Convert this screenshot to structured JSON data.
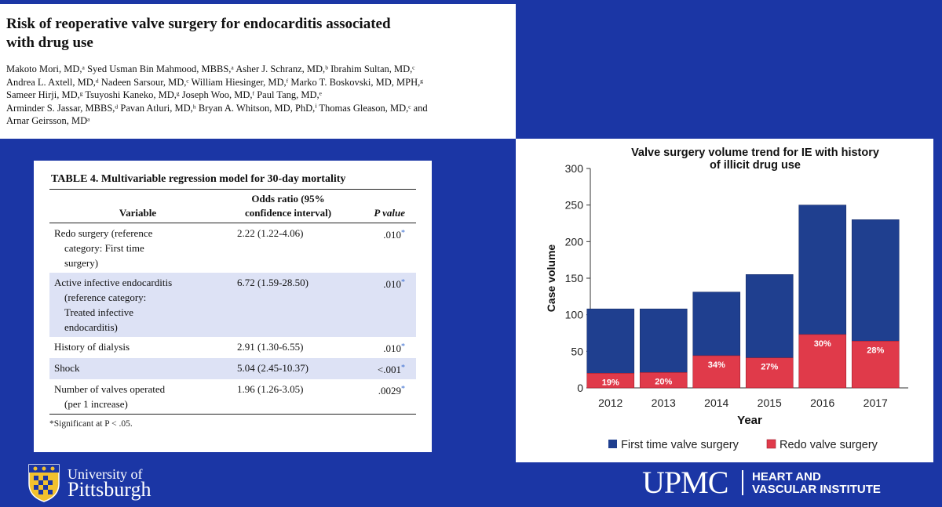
{
  "paper": {
    "title": "Risk of reoperative valve surgery for endocarditis associated with drug use",
    "author_lines": [
      "Makoto Mori, MD,ᵃ Syed Usman Bin Mahmood, MBBS,ᵃ Asher J. Schranz, MD,ᵇ Ibrahim Sultan, MD,ᶜ",
      "Andrea L. Axtell, MD,ᵈ Nadeen Sarsour, MD,ᶜ William Hiesinger, MD,ᶠ Marko T. Boskovski, MD, MPH,ᵍ",
      "Sameer Hirji, MD,ᵍ Tsuyoshi Kaneko, MD,ᵍ Joseph Woo, MD,ᶠ Paul Tang, MD,ᵉ",
      "Arminder S. Jassar, MBBS,ᵈ Pavan Atluri, MD,ʰ Bryan A. Whitson, MD, PhD,ⁱ Thomas Gleason, MD,ᶜ and",
      "Arnar Geirsson, MDᵃ"
    ]
  },
  "table": {
    "caption": "TABLE 4. Multivariable regression model for 30-day mortality",
    "headers": {
      "variable": "Variable",
      "odds_ratio": "Odds ratio (95% confidence interval)",
      "p_value": "P value"
    },
    "rows": [
      {
        "variable": "Redo surgery (reference",
        "variable_cont": [
          "category: First time",
          "surgery)"
        ],
        "odds_ratio": "2.22 (1.22-4.06)",
        "p_value": ".010",
        "star": "*"
      },
      {
        "variable": "Active infective endocarditis",
        "variable_cont": [
          "(reference category:",
          "Treated infective",
          "endocarditis)"
        ],
        "odds_ratio": "6.72 (1.59-28.50)",
        "p_value": ".010",
        "star": "*"
      },
      {
        "variable": "History of dialysis",
        "variable_cont": [],
        "odds_ratio": "2.91 (1.30-6.55)",
        "p_value": ".010",
        "star": "*"
      },
      {
        "variable": "Shock",
        "variable_cont": [],
        "odds_ratio": "5.04 (2.45-10.37)",
        "p_value": "<.001",
        "star": "*"
      },
      {
        "variable": "Number of valves operated",
        "variable_cont": [
          "(per 1 increase)"
        ],
        "odds_ratio": "1.96 (1.26-3.05)",
        "p_value": ".0029",
        "star": "*"
      }
    ],
    "footnote": "*Significant at P < .05."
  },
  "chart_data": {
    "type": "bar",
    "stacked": true,
    "title": "Valve surgery volume trend for IE with history of illicit drug use",
    "xlabel": "Year",
    "ylabel": "Case volume",
    "ylim": [
      0,
      300
    ],
    "yticks": [
      0,
      50,
      100,
      150,
      200,
      250,
      300
    ],
    "categories": [
      "2012",
      "2013",
      "2014",
      "2015",
      "2016",
      "2017"
    ],
    "series": [
      {
        "name": "Redo valve surgery",
        "values": [
          20,
          21,
          44,
          41,
          73,
          64
        ],
        "color": "#e03a4a"
      },
      {
        "name": "First time valve surgery",
        "values": [
          88,
          87,
          87,
          114,
          177,
          166
        ],
        "color": "#1f3f8f"
      }
    ],
    "data_labels": [
      "19%",
      "20%",
      "34%",
      "27%",
      "30%",
      "28%"
    ],
    "legend_position": "bottom"
  },
  "footer": {
    "pitt_line1": "University of",
    "pitt_line2": "Pittsburgh",
    "upmc_word": "UPMC",
    "upmc_sub1": "HEART AND",
    "upmc_sub2": "VASCULAR INSTITUTE"
  },
  "colors": {
    "background": "#1b36a5",
    "first_time": "#1f3f8f",
    "redo": "#e03a4a",
    "table_shade": "#dde2f5",
    "pitt_gold": "#f2c12e"
  }
}
